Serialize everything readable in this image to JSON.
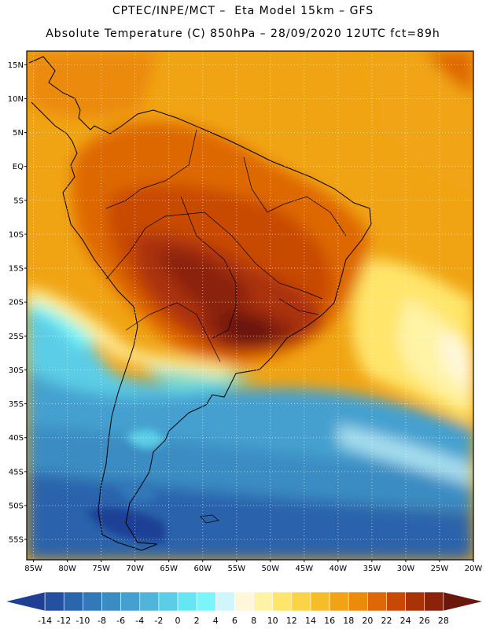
{
  "header": {
    "line1": "CPTEC/INPE/MCT –  Eta Model 15km – GFS",
    "line2": "Absolute Temperature (C) 850hPa – 28/09/2020 12UTC fct=89h"
  },
  "map": {
    "lat_labels": [
      "15N",
      "10N",
      "5N",
      "EQ",
      "5S",
      "10S",
      "15S",
      "20S",
      "25S",
      "30S",
      "35S",
      "40S",
      "45S",
      "50S",
      "55S"
    ],
    "lon_labels": [
      "85W",
      "80W",
      "75W",
      "70W",
      "65W",
      "60W",
      "55W",
      "50W",
      "45W",
      "40W",
      "35W",
      "30W",
      "25W",
      "20W"
    ],
    "lat_range": [
      17,
      -58
    ],
    "lon_range": [
      -86,
      -20
    ]
  },
  "legend": {
    "tick_labels": [
      "-14",
      "-12",
      "-10",
      "-8",
      "-6",
      "-4",
      "-2",
      "0",
      "2",
      "4",
      "6",
      "8",
      "10",
      "12",
      "14",
      "16",
      "18",
      "20",
      "22",
      "24",
      "26",
      "28"
    ],
    "colors": [
      "#1f3f95",
      "#24519f",
      "#2a66ad",
      "#3279b8",
      "#3b8cc3",
      "#45a0cf",
      "#51b5da",
      "#5ccde6",
      "#65e6f2",
      "#7af6fa",
      "#cff6fb",
      "#fff7da",
      "#fff3a5",
      "#ffe56b",
      "#fbd445",
      "#f5bd27",
      "#f0a413",
      "#ec8a0b",
      "#de6706",
      "#c84806",
      "#aa3207",
      "#8b2209",
      "#6b170c"
    ]
  }
}
